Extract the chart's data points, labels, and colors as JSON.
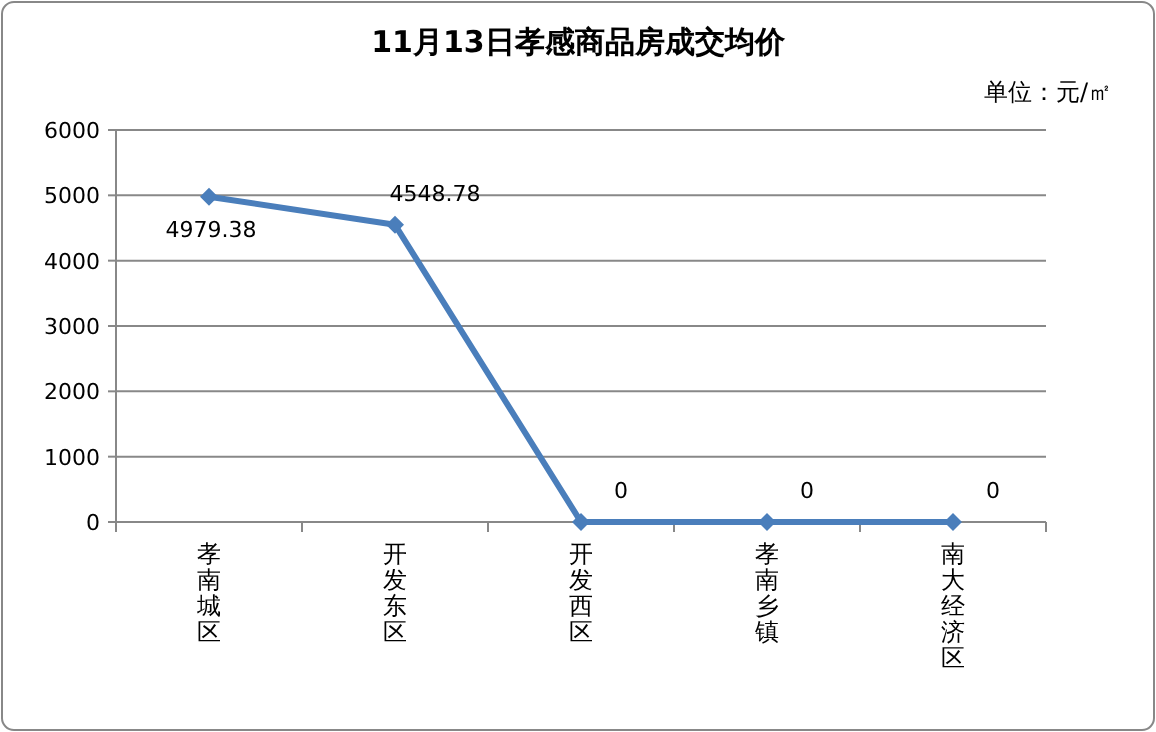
{
  "chart_data": {
    "type": "line",
    "title": "11月13日孝感商品房成交均价",
    "annotations": [
      "单位：元/㎡"
    ],
    "categories": [
      "孝南城区",
      "开发东区",
      "开发西区",
      "孝南乡镇",
      "南大经济区"
    ],
    "series": [
      {
        "color": "#4a7ebb",
        "values": [
          4979.38,
          4548.78,
          0,
          0,
          0
        ]
      }
    ],
    "ylim": [
      0,
      6000
    ],
    "yticks": [
      0,
      1000,
      2000,
      3000,
      4000,
      5000,
      6000
    ],
    "grid": "y",
    "data_labels": true,
    "marker": "diamond",
    "line_style": "solid"
  }
}
